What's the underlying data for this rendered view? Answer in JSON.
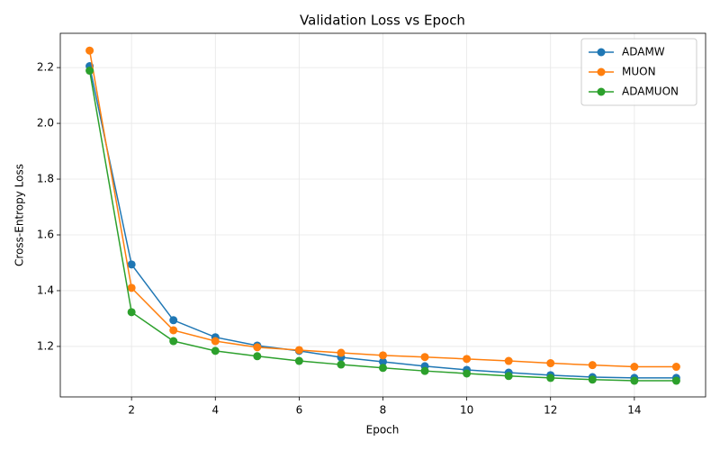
{
  "chart_data": {
    "type": "line",
    "title": "Validation Loss vs Epoch",
    "xlabel": "Epoch",
    "ylabel": "Cross-Entropy Loss",
    "x": [
      1,
      2,
      3,
      4,
      5,
      6,
      7,
      8,
      9,
      10,
      11,
      12,
      13,
      14,
      15
    ],
    "series": [
      {
        "name": "ADAMW",
        "color": "#1f77b4",
        "values": [
          2.205,
          1.494,
          1.294,
          1.233,
          1.203,
          1.184,
          1.161,
          1.145,
          1.129,
          1.116,
          1.106,
          1.097,
          1.09,
          1.087,
          1.087
        ]
      },
      {
        "name": "MUON",
        "color": "#ff7f0e",
        "values": [
          2.261,
          1.41,
          1.258,
          1.219,
          1.197,
          1.187,
          1.177,
          1.168,
          1.162,
          1.155,
          1.148,
          1.14,
          1.133,
          1.127,
          1.127
        ]
      },
      {
        "name": "ADAMUON",
        "color": "#2ca02c",
        "values": [
          2.189,
          1.323,
          1.219,
          1.184,
          1.165,
          1.148,
          1.135,
          1.123,
          1.112,
          1.103,
          1.094,
          1.087,
          1.081,
          1.077,
          1.077
        ]
      }
    ],
    "xlim": [
      0.3,
      15.7
    ],
    "ylim": [
      1.019,
      2.323
    ],
    "xticks": [
      2,
      4,
      6,
      8,
      10,
      12,
      14
    ],
    "yticks": [
      1.2,
      1.4,
      1.6,
      1.8,
      {
        "value": 2,
        "label": "2.0"
      },
      2.2
    ],
    "grid": true,
    "legend": "upper right"
  }
}
